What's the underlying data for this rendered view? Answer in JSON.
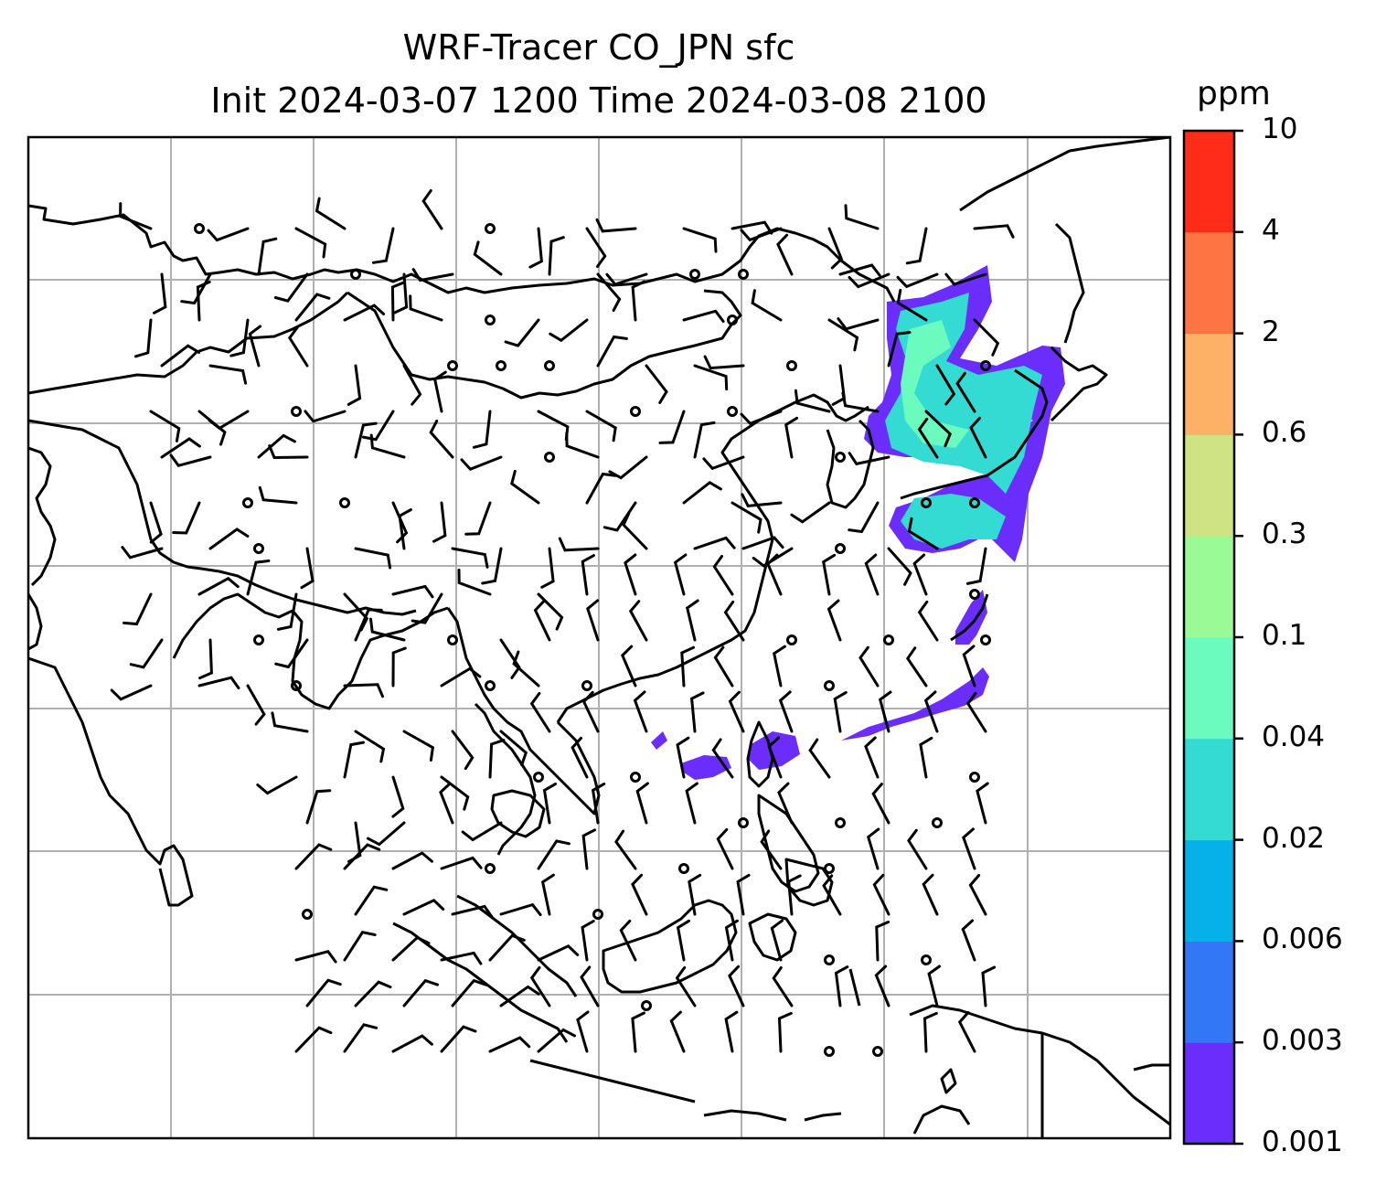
{
  "title": {
    "line1": "WRF-Tracer CO_JPN sfc",
    "line2": "Init 2024-03-07 1200 Time 2024-03-08 2100"
  },
  "colorbar": {
    "unit": "ppm",
    "levels": [
      "0.001",
      "0.003",
      "0.006",
      "0.02",
      "0.04",
      "0.1",
      "0.3",
      "0.6",
      "2",
      "4",
      "10"
    ],
    "colors": [
      "#6a2dfc",
      "#3278f6",
      "#06b1ea",
      "#34dbd2",
      "#6cfbbf",
      "#9afa95",
      "#cfe384",
      "#fdb166",
      "#fe7442",
      "#fe2c19"
    ]
  },
  "map": {
    "gridlines": true,
    "tracer_plume_color": "#6a2dfc",
    "tracer_core_color": "#34dbd2"
  }
}
